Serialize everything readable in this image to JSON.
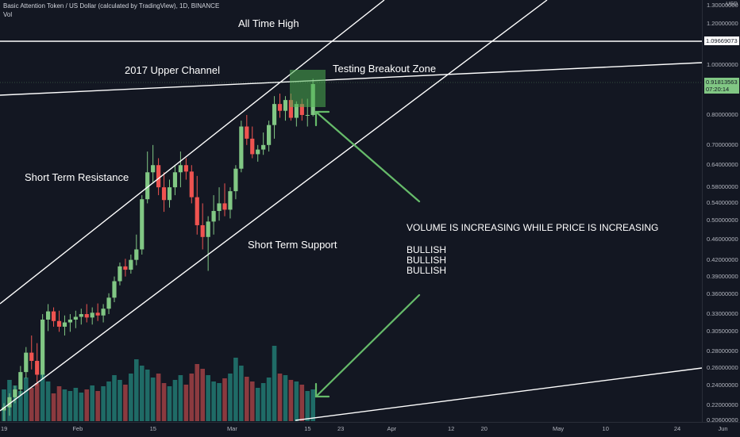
{
  "header": {
    "symbol_title": "Basic Attention Token / US Dollar (calculated by TradingView), 1D, BINANCE",
    "volume_label": "Vol",
    "currency": "USD"
  },
  "annotations": {
    "all_time_high": "All Time High",
    "upper_channel": "2017 Upper Channel",
    "testing_breakout": "Testing Breakout Zone",
    "short_term_resistance": "Short Term Resistance",
    "short_term_support": "Short Term Support",
    "volume_note": "VOLUME IS INCREASING WHILE PRICE IS INCREASING",
    "bullish_1": "BULLISH",
    "bullish_2": "BULLISH",
    "bullish_3": "BULLISH"
  },
  "price_boxes": {
    "level": "1.09669073",
    "current_price": "0.91813563",
    "countdown": "07:20:14"
  },
  "colors": {
    "background": "#131722",
    "up": "#81c784",
    "down": "#ef5350",
    "vol_up": "#1f6b66",
    "vol_down": "#8b3a3f",
    "line": "#ffffff",
    "arrow": "#66bb6a",
    "zone": "#4caf50"
  },
  "chart_data": {
    "type": "candlestick",
    "title": "Basic Attention Token / US Dollar (calculated by TradingView), 1D, BINANCE",
    "scale": "log",
    "ylim": [
      0.205,
      1.32
    ],
    "price_ticks": [
      "1.30000000",
      "1.20000000",
      "1.00000000",
      "0.80000000",
      "0.70000000",
      "0.64000000",
      "0.58000000",
      "0.54000000",
      "0.50000000",
      "0.46000000",
      "0.42000000",
      "0.39000000",
      "0.36000000",
      "0.33000000",
      "0.30500000",
      "0.28000000",
      "0.26000000",
      "0.24000000",
      "0.22000000",
      "0.20600000"
    ],
    "price_tick_values": [
      1.3,
      1.2,
      1.0,
      0.8,
      0.7,
      0.64,
      0.58,
      0.54,
      0.5,
      0.46,
      0.42,
      0.39,
      0.36,
      0.33,
      0.305,
      0.28,
      0.26,
      0.24,
      0.22,
      0.206
    ],
    "time_ticks": [
      "19",
      "Feb",
      "15",
      "Mar",
      "15",
      "23",
      "Apr",
      "12",
      "20",
      "May",
      "10",
      "24",
      "Jun"
    ],
    "time_tick_days": [
      0,
      13,
      27,
      41,
      55,
      61,
      70,
      81,
      87,
      100,
      109,
      122,
      130
    ],
    "candles": [
      {
        "o": 0.215,
        "h": 0.222,
        "l": 0.205,
        "c": 0.218
      },
      {
        "o": 0.218,
        "h": 0.232,
        "l": 0.21,
        "c": 0.228
      },
      {
        "o": 0.228,
        "h": 0.24,
        "l": 0.222,
        "c": 0.236
      },
      {
        "o": 0.236,
        "h": 0.262,
        "l": 0.23,
        "c": 0.255
      },
      {
        "o": 0.255,
        "h": 0.285,
        "l": 0.248,
        "c": 0.278
      },
      {
        "o": 0.278,
        "h": 0.3,
        "l": 0.258,
        "c": 0.268
      },
      {
        "o": 0.268,
        "h": 0.29,
        "l": 0.24,
        "c": 0.252
      },
      {
        "o": 0.252,
        "h": 0.33,
        "l": 0.248,
        "c": 0.322
      },
      {
        "o": 0.322,
        "h": 0.345,
        "l": 0.306,
        "c": 0.334
      },
      {
        "o": 0.334,
        "h": 0.34,
        "l": 0.312,
        "c": 0.32
      },
      {
        "o": 0.32,
        "h": 0.335,
        "l": 0.305,
        "c": 0.312
      },
      {
        "o": 0.312,
        "h": 0.328,
        "l": 0.3,
        "c": 0.318
      },
      {
        "o": 0.318,
        "h": 0.33,
        "l": 0.305,
        "c": 0.322
      },
      {
        "o": 0.322,
        "h": 0.335,
        "l": 0.31,
        "c": 0.326
      },
      {
        "o": 0.326,
        "h": 0.338,
        "l": 0.315,
        "c": 0.33
      },
      {
        "o": 0.33,
        "h": 0.345,
        "l": 0.318,
        "c": 0.325
      },
      {
        "o": 0.325,
        "h": 0.34,
        "l": 0.315,
        "c": 0.332
      },
      {
        "o": 0.332,
        "h": 0.346,
        "l": 0.32,
        "c": 0.328
      },
      {
        "o": 0.328,
        "h": 0.345,
        "l": 0.318,
        "c": 0.338
      },
      {
        "o": 0.338,
        "h": 0.362,
        "l": 0.33,
        "c": 0.355
      },
      {
        "o": 0.355,
        "h": 0.39,
        "l": 0.348,
        "c": 0.382
      },
      {
        "o": 0.382,
        "h": 0.415,
        "l": 0.375,
        "c": 0.408
      },
      {
        "o": 0.408,
        "h": 0.422,
        "l": 0.39,
        "c": 0.402
      },
      {
        "o": 0.402,
        "h": 0.43,
        "l": 0.395,
        "c": 0.42
      },
      {
        "o": 0.42,
        "h": 0.47,
        "l": 0.41,
        "c": 0.44
      },
      {
        "o": 0.44,
        "h": 0.56,
        "l": 0.43,
        "c": 0.55
      },
      {
        "o": 0.55,
        "h": 0.68,
        "l": 0.54,
        "c": 0.62
      },
      {
        "o": 0.62,
        "h": 0.7,
        "l": 0.59,
        "c": 0.64
      },
      {
        "o": 0.64,
        "h": 0.66,
        "l": 0.56,
        "c": 0.58
      },
      {
        "o": 0.58,
        "h": 0.62,
        "l": 0.52,
        "c": 0.548
      },
      {
        "o": 0.548,
        "h": 0.6,
        "l": 0.53,
        "c": 0.58
      },
      {
        "o": 0.58,
        "h": 0.64,
        "l": 0.56,
        "c": 0.62
      },
      {
        "o": 0.62,
        "h": 0.68,
        "l": 0.58,
        "c": 0.64
      },
      {
        "o": 0.64,
        "h": 0.66,
        "l": 0.6,
        "c": 0.622
      },
      {
        "o": 0.622,
        "h": 0.64,
        "l": 0.54,
        "c": 0.555
      },
      {
        "o": 0.555,
        "h": 0.61,
        "l": 0.47,
        "c": 0.49
      },
      {
        "o": 0.49,
        "h": 0.54,
        "l": 0.44,
        "c": 0.465
      },
      {
        "o": 0.465,
        "h": 0.51,
        "l": 0.4,
        "c": 0.498
      },
      {
        "o": 0.498,
        "h": 0.56,
        "l": 0.47,
        "c": 0.522
      },
      {
        "o": 0.522,
        "h": 0.58,
        "l": 0.5,
        "c": 0.54
      },
      {
        "o": 0.54,
        "h": 0.59,
        "l": 0.51,
        "c": 0.525
      },
      {
        "o": 0.525,
        "h": 0.58,
        "l": 0.505,
        "c": 0.57
      },
      {
        "o": 0.57,
        "h": 0.64,
        "l": 0.55,
        "c": 0.63
      },
      {
        "o": 0.63,
        "h": 0.78,
        "l": 0.62,
        "c": 0.76
      },
      {
        "o": 0.76,
        "h": 0.8,
        "l": 0.7,
        "c": 0.72
      },
      {
        "o": 0.72,
        "h": 0.76,
        "l": 0.66,
        "c": 0.672
      },
      {
        "o": 0.672,
        "h": 0.7,
        "l": 0.65,
        "c": 0.686
      },
      {
        "o": 0.686,
        "h": 0.74,
        "l": 0.67,
        "c": 0.7
      },
      {
        "o": 0.7,
        "h": 0.78,
        "l": 0.68,
        "c": 0.765
      },
      {
        "o": 0.765,
        "h": 0.87,
        "l": 0.72,
        "c": 0.84
      },
      {
        "o": 0.84,
        "h": 0.88,
        "l": 0.79,
        "c": 0.815
      },
      {
        "o": 0.815,
        "h": 0.87,
        "l": 0.78,
        "c": 0.855
      },
      {
        "o": 0.855,
        "h": 0.88,
        "l": 0.78,
        "c": 0.79
      },
      {
        "o": 0.79,
        "h": 0.85,
        "l": 0.76,
        "c": 0.84
      },
      {
        "o": 0.84,
        "h": 0.86,
        "l": 0.78,
        "c": 0.8
      },
      {
        "o": 0.8,
        "h": 0.86,
        "l": 0.76,
        "c": 0.8
      },
      {
        "o": 0.8,
        "h": 0.94,
        "l": 0.795,
        "c": 0.918
      }
    ],
    "volumes": [
      40,
      52,
      45,
      38,
      55,
      42,
      48,
      60,
      50,
      35,
      44,
      40,
      38,
      42,
      36,
      40,
      45,
      38,
      44,
      50,
      58,
      52,
      46,
      60,
      78,
      70,
      65,
      55,
      60,
      48,
      44,
      52,
      58,
      46,
      60,
      72,
      66,
      58,
      50,
      48,
      54,
      60,
      80,
      70,
      56,
      50,
      42,
      48,
      55,
      95,
      60,
      58,
      52,
      50,
      46,
      38,
      40
    ]
  }
}
